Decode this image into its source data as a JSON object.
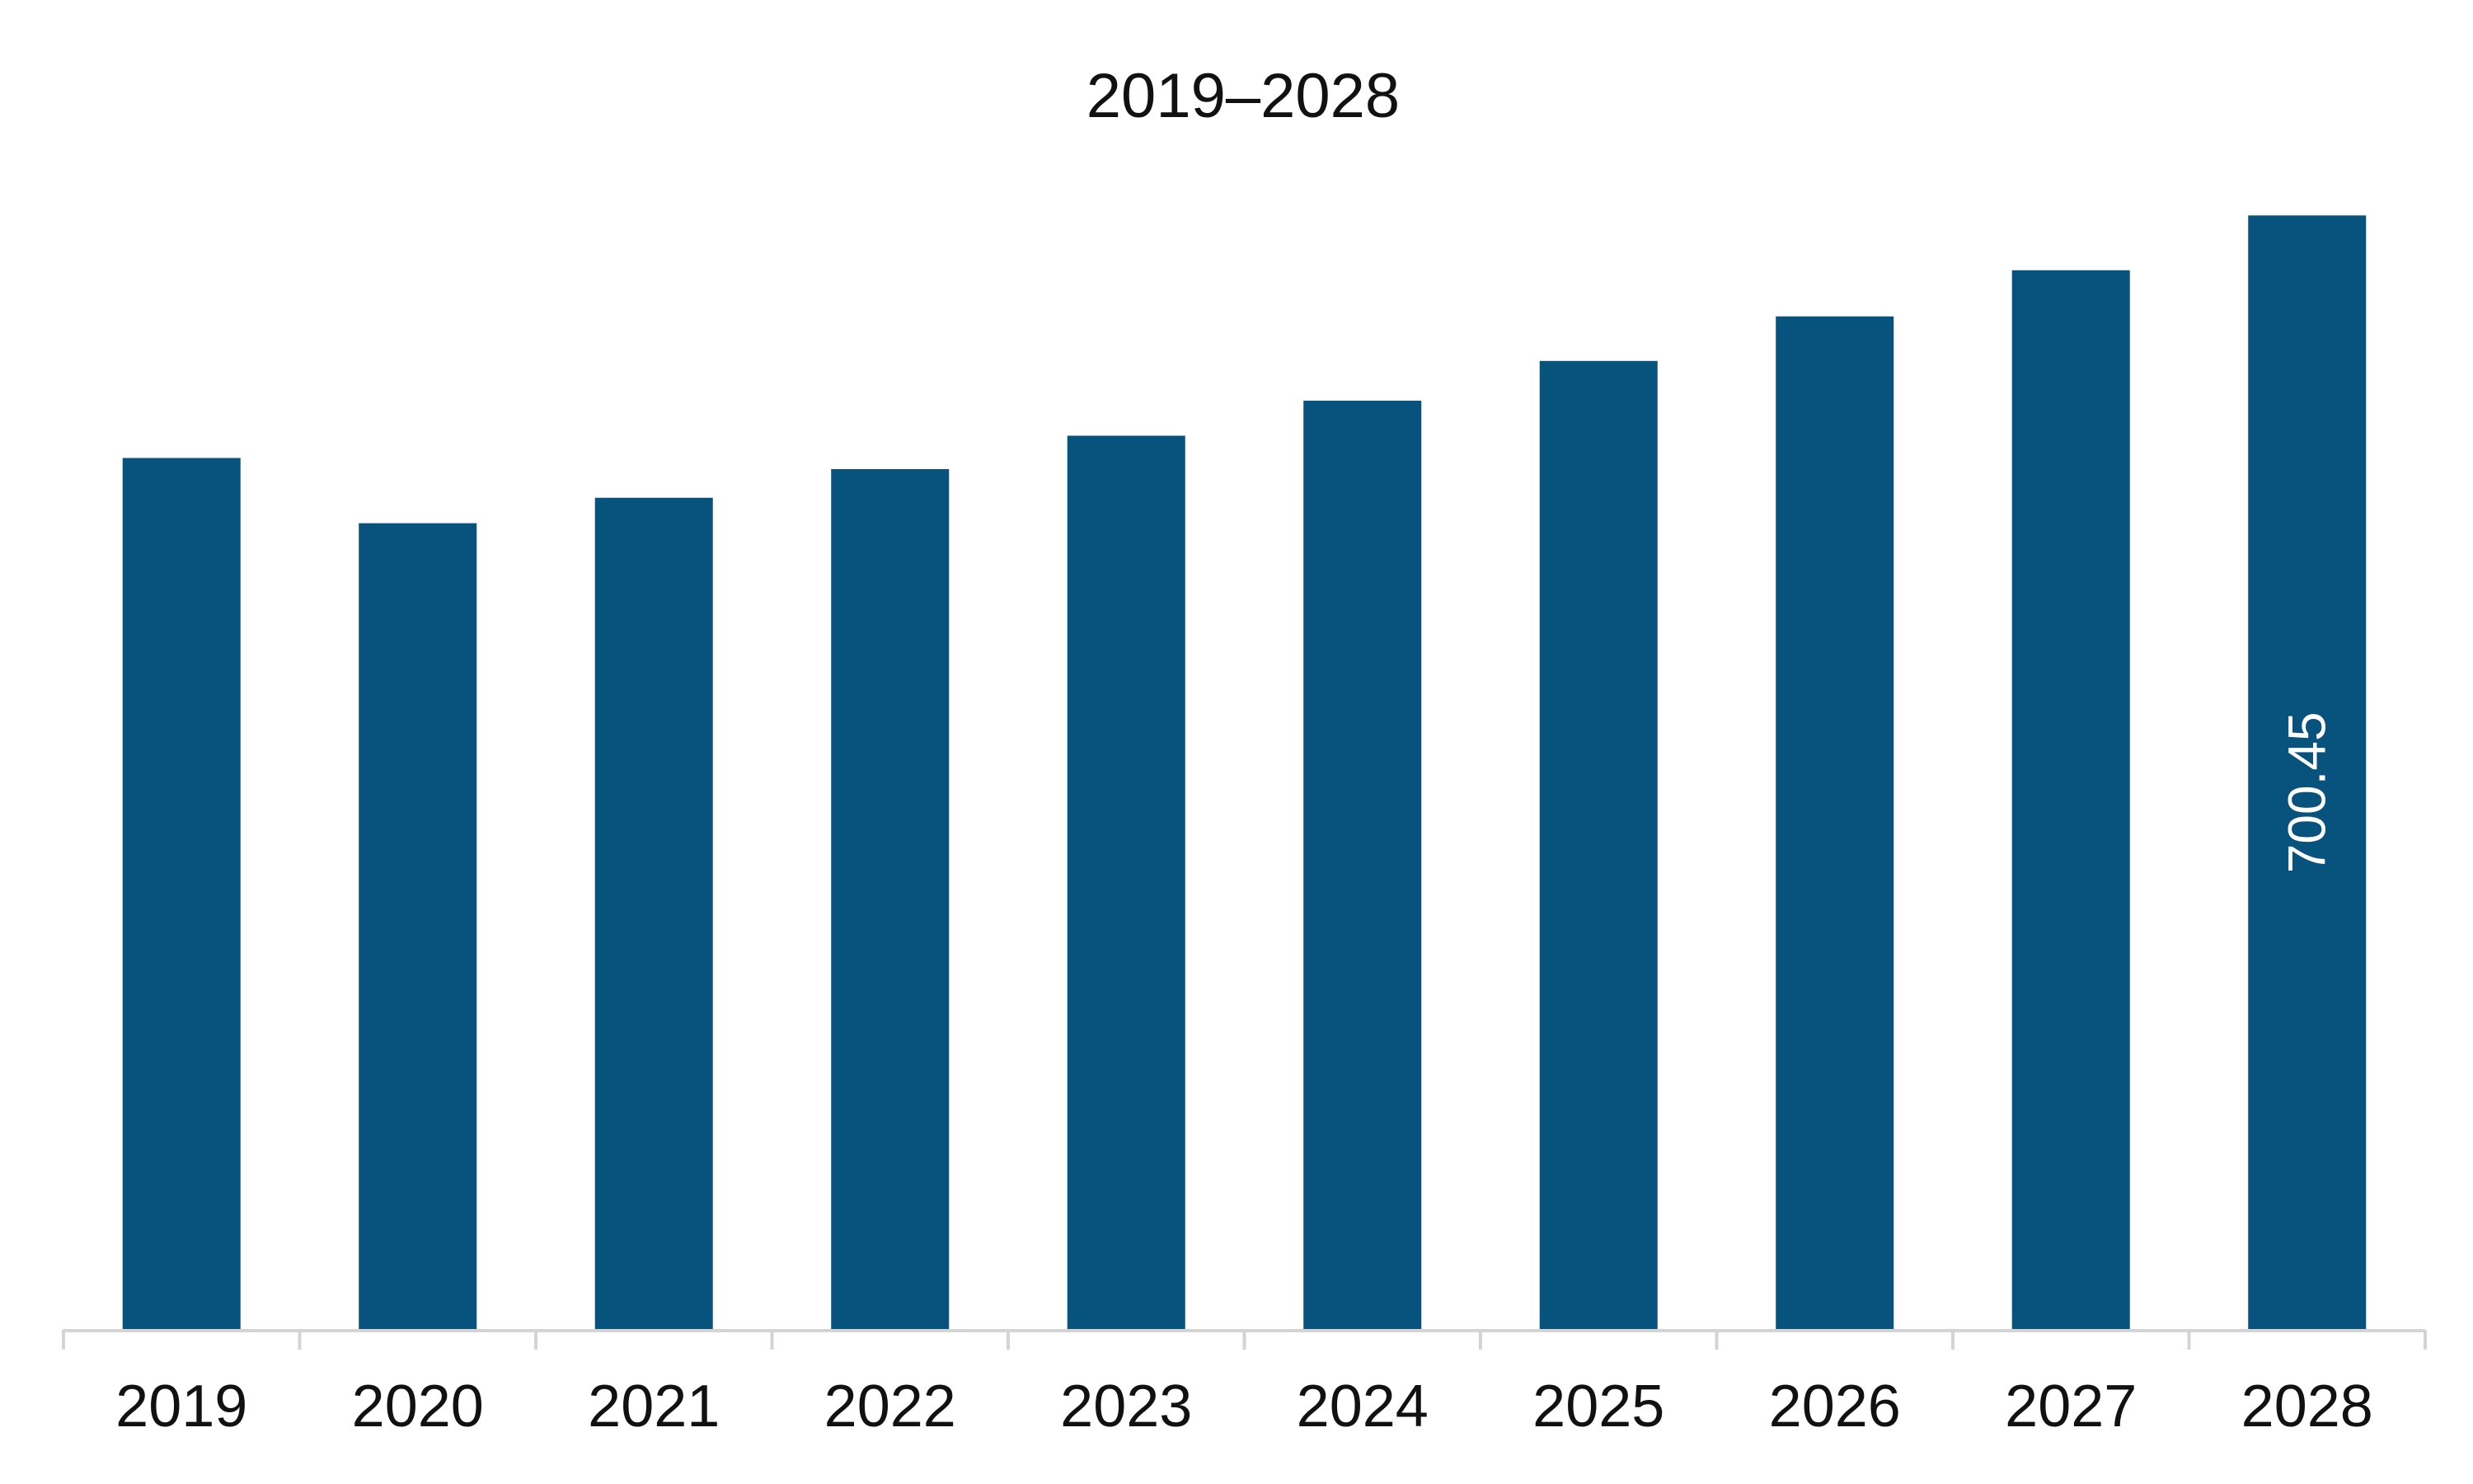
{
  "chart_data": {
    "type": "bar",
    "title": "2019–2028",
    "xlabel": "",
    "ylabel": "",
    "categories": [
      "2019",
      "2020",
      "2021",
      "2022",
      "2023",
      "2024",
      "2025",
      "2026",
      "2027",
      "2028"
    ],
    "values": [
      548,
      507,
      523,
      541,
      562,
      584,
      609,
      637,
      666,
      700.45
    ],
    "data_labels": [
      "",
      "",
      "",
      "",
      "",
      "",
      "",
      "",
      "",
      "700.45"
    ],
    "ylim": [
      0,
      740
    ],
    "grid": false,
    "legend": "none"
  },
  "colors": {
    "bar": "#08527e",
    "axis": "#d4d4d4",
    "text": "#111111",
    "data_label": "#ffffff",
    "background": "#ffffff"
  }
}
